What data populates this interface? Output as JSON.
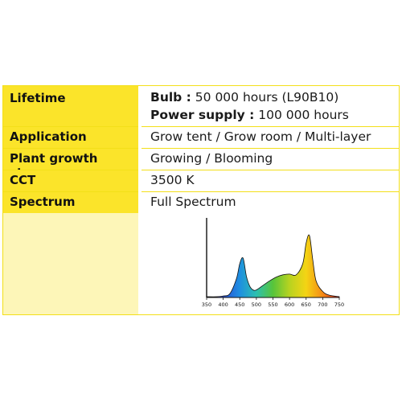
{
  "rows": [
    {
      "label": "Lifetime",
      "lines": [
        {
          "bold": "Bulb :",
          "text": "50 000 hours (L90B10)"
        },
        {
          "bold": "Power supply :",
          "text": "100 000 hours"
        }
      ]
    },
    {
      "label": "Application",
      "value": "Grow tent / Grow room / Multi-layer"
    },
    {
      "label": "Plant growth stage",
      "value": "Growing / Blooming"
    },
    {
      "label": "CCT",
      "value": "3500 K"
    },
    {
      "label": "Spectrum",
      "value": "Full Spectrum"
    }
  ],
  "chart_data": {
    "type": "area",
    "x": [
      350,
      380,
      400,
      420,
      440,
      450,
      460,
      470,
      480,
      490,
      500,
      520,
      540,
      560,
      580,
      600,
      620,
      640,
      650,
      660,
      670,
      680,
      700,
      720,
      750
    ],
    "values": [
      0.01,
      0.01,
      0.02,
      0.05,
      0.25,
      0.45,
      0.52,
      0.28,
      0.15,
      0.1,
      0.1,
      0.16,
      0.22,
      0.27,
      0.3,
      0.31,
      0.3,
      0.45,
      0.72,
      0.82,
      0.5,
      0.22,
      0.08,
      0.03,
      0.01
    ],
    "x_ticks": [
      "350",
      "400",
      "450",
      "500",
      "550",
      "600",
      "650",
      "700",
      "750"
    ],
    "xlim": [
      350,
      750
    ],
    "ylim": [
      0,
      1
    ],
    "colors": [
      "#7b2cc0",
      "#2a4fd6",
      "#1e8fe0",
      "#2dc0b0",
      "#57c43a",
      "#b8d320",
      "#f4d414",
      "#f58a16",
      "#e8261c"
    ]
  }
}
